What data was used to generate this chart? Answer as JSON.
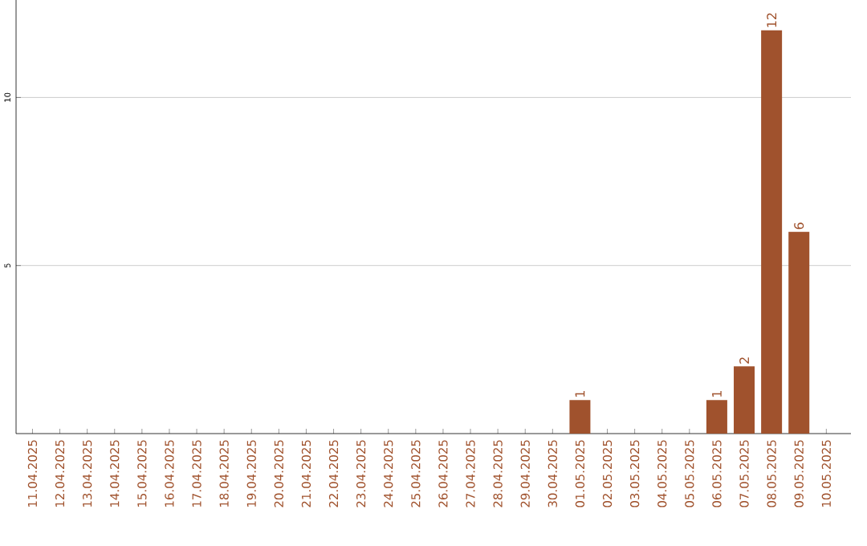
{
  "chart_data": {
    "type": "bar",
    "categories": [
      "11.04.2025",
      "12.04.2025",
      "13.04.2025",
      "14.04.2025",
      "15.04.2025",
      "16.04.2025",
      "17.04.2025",
      "18.04.2025",
      "19.04.2025",
      "20.04.2025",
      "21.04.2025",
      "22.04.2025",
      "23.04.2025",
      "24.04.2025",
      "25.04.2025",
      "26.04.2025",
      "27.04.2025",
      "28.04.2025",
      "29.04.2025",
      "30.04.2025",
      "01.05.2025",
      "02.05.2025",
      "03.05.2025",
      "04.05.2025",
      "05.05.2025",
      "06.05.2025",
      "07.05.2025",
      "08.05.2025",
      "09.05.2025",
      "10.05.2025"
    ],
    "values": [
      0,
      0,
      0,
      0,
      0,
      0,
      0,
      0,
      0,
      0,
      0,
      0,
      0,
      0,
      0,
      0,
      0,
      0,
      0,
      0,
      1,
      0,
      0,
      0,
      0,
      1,
      2,
      12,
      6,
      0
    ],
    "value_labels": [
      null,
      null,
      null,
      null,
      null,
      null,
      null,
      null,
      null,
      null,
      null,
      null,
      null,
      null,
      null,
      null,
      null,
      null,
      null,
      null,
      "1",
      null,
      null,
      null,
      null,
      "1",
      "2",
      "12",
      "6",
      null
    ],
    "color": "#a0522d",
    "ylim": [
      0,
      12.9
    ],
    "yticks": [
      5,
      10
    ],
    "grid": "y"
  }
}
